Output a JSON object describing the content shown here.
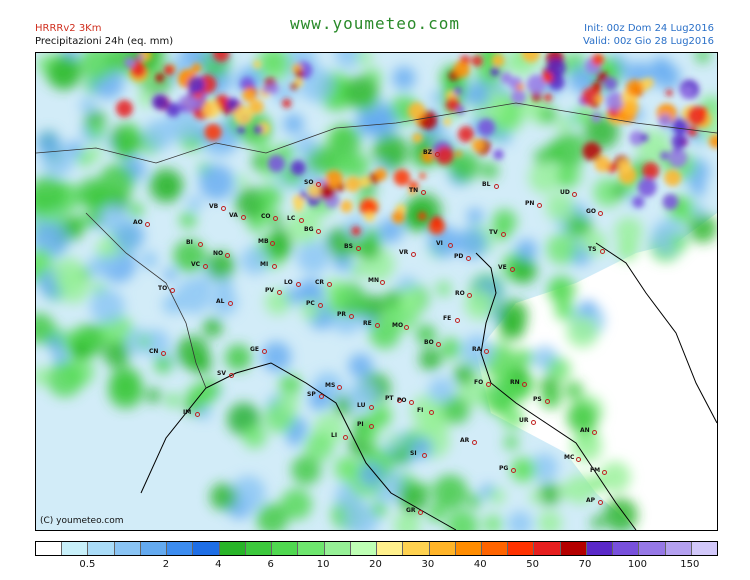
{
  "header": {
    "model": "HRRRv2 3Km",
    "variable": "Precipitazioni 24h (eq. mm)",
    "site": "www.youmeteo.com",
    "init": "Init: 00z Dom 24 Lug2016",
    "valid": "Valid: 00z Gio  28 Lug2016"
  },
  "map": {
    "copyright": "(C) youmeteo.com",
    "cities": [
      {
        "code": "SO"
      },
      {
        "code": "BZ"
      },
      {
        "code": "TN"
      },
      {
        "code": "BL"
      },
      {
        "code": "UD"
      },
      {
        "code": "PN"
      },
      {
        "code": "GO"
      },
      {
        "code": "TS"
      },
      {
        "code": "AO"
      },
      {
        "code": "BI"
      },
      {
        "code": "VB"
      },
      {
        "code": "VA"
      },
      {
        "code": "CO"
      },
      {
        "code": "LC"
      },
      {
        "code": "BG"
      },
      {
        "code": "BS"
      },
      {
        "code": "VR"
      },
      {
        "code": "VI"
      },
      {
        "code": "TV"
      },
      {
        "code": "VE"
      },
      {
        "code": "PD"
      },
      {
        "code": "NO"
      },
      {
        "code": "MB"
      },
      {
        "code": "MI"
      },
      {
        "code": "VC"
      },
      {
        "code": "TO"
      },
      {
        "code": "AL"
      },
      {
        "code": "PV"
      },
      {
        "code": "LO"
      },
      {
        "code": "CR"
      },
      {
        "code": "MN"
      },
      {
        "code": "PC"
      },
      {
        "code": "RO"
      },
      {
        "code": "PR"
      },
      {
        "code": "RE"
      },
      {
        "code": "MO"
      },
      {
        "code": "FE"
      },
      {
        "code": "BO"
      },
      {
        "code": "RA"
      },
      {
        "code": "FO"
      },
      {
        "code": "RN"
      },
      {
        "code": "PS"
      },
      {
        "code": "GE"
      },
      {
        "code": "CN"
      },
      {
        "code": "SV"
      },
      {
        "code": "IM"
      },
      {
        "code": "SP"
      },
      {
        "code": "MS"
      },
      {
        "code": "LU"
      },
      {
        "code": "PT"
      },
      {
        "code": "PO"
      },
      {
        "code": "PI"
      },
      {
        "code": "FI"
      },
      {
        "code": "LI"
      },
      {
        "code": "AR"
      },
      {
        "code": "UR"
      },
      {
        "code": "AN"
      },
      {
        "code": "SI"
      },
      {
        "code": "MC"
      },
      {
        "code": "PG"
      },
      {
        "code": "FM"
      },
      {
        "code": "GR"
      },
      {
        "code": "AP"
      }
    ]
  },
  "legend": {
    "colors": [
      "#ffffff",
      "#c8f0fa",
      "#aadcf8",
      "#8ac4f4",
      "#64aaf0",
      "#3c8cf0",
      "#1e6ee6",
      "#28b428",
      "#3cc83c",
      "#50d850",
      "#6ee66e",
      "#96f096",
      "#beffb4",
      "#fff08c",
      "#ffd250",
      "#ffb428",
      "#ff8c00",
      "#ff6400",
      "#ff3200",
      "#e61e1e",
      "#b40000",
      "#5a28c8",
      "#7850dc",
      "#9678e6",
      "#b4a0f0",
      "#d2c8fa"
    ],
    "labels": [
      {
        "text": "0.5",
        "i": 2
      },
      {
        "text": "2",
        "i": 5
      },
      {
        "text": "4",
        "i": 7
      },
      {
        "text": "6",
        "i": 9
      },
      {
        "text": "10",
        "i": 11
      },
      {
        "text": "20",
        "i": 13
      },
      {
        "text": "30",
        "i": 15
      },
      {
        "text": "40",
        "i": 17
      },
      {
        "text": "50",
        "i": 19
      },
      {
        "text": "70",
        "i": 21
      },
      {
        "text": "100",
        "i": 23
      },
      {
        "text": "150",
        "i": 25
      }
    ]
  }
}
